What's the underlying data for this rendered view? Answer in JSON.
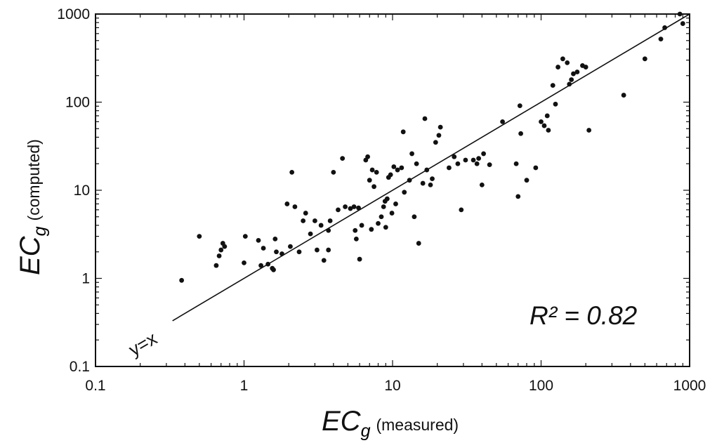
{
  "chart_data": {
    "type": "scatter",
    "x_scale": "log",
    "y_scale": "log",
    "xlim": [
      0.1,
      1000
    ],
    "ylim": [
      0.1,
      1000
    ],
    "x_ticks": [
      {
        "value": 0.1,
        "label": "0.1"
      },
      {
        "value": 1,
        "label": "1"
      },
      {
        "value": 10,
        "label": "10"
      },
      {
        "value": 100,
        "label": "100"
      },
      {
        "value": 1000,
        "label": "1000"
      }
    ],
    "y_ticks": [
      {
        "value": 0.1,
        "label": "0.1"
      },
      {
        "value": 1,
        "label": "1"
      },
      {
        "value": 10,
        "label": "10"
      },
      {
        "value": 100,
        "label": "100"
      },
      {
        "value": 1000,
        "label": "1000"
      }
    ],
    "xlabel": {
      "main": "EC",
      "sub": "g",
      "note": "(measured)"
    },
    "ylabel": {
      "main": "EC",
      "sub": "g",
      "note": "(computed)"
    },
    "grid": false,
    "annotations": {
      "r2": "R² = 0.82",
      "identity": "y=x"
    },
    "reference_line": {
      "from": [
        0.33,
        0.33
      ],
      "to": [
        1000,
        1000
      ]
    },
    "points": [
      [
        0.38,
        0.95
      ],
      [
        0.5,
        3.0
      ],
      [
        0.65,
        1.4
      ],
      [
        0.68,
        1.8
      ],
      [
        0.7,
        2.1
      ],
      [
        0.72,
        2.5
      ],
      [
        0.74,
        2.3
      ],
      [
        1.0,
        1.5
      ],
      [
        1.02,
        3.0
      ],
      [
        1.25,
        2.7
      ],
      [
        1.3,
        1.4
      ],
      [
        1.35,
        2.2
      ],
      [
        1.45,
        1.45
      ],
      [
        1.55,
        1.3
      ],
      [
        1.58,
        1.25
      ],
      [
        1.62,
        2.8
      ],
      [
        1.65,
        2.0
      ],
      [
        1.8,
        1.9
      ],
      [
        1.95,
        7.0
      ],
      [
        2.05,
        2.3
      ],
      [
        2.1,
        16.0
      ],
      [
        2.2,
        6.5
      ],
      [
        2.35,
        2.0
      ],
      [
        2.5,
        4.5
      ],
      [
        2.6,
        5.5
      ],
      [
        2.8,
        3.2
      ],
      [
        3.0,
        4.5
      ],
      [
        3.1,
        2.1
      ],
      [
        3.3,
        4.0
      ],
      [
        3.45,
        1.6
      ],
      [
        3.7,
        2.1
      ],
      [
        3.7,
        3.5
      ],
      [
        3.8,
        4.5
      ],
      [
        4.0,
        16.0
      ],
      [
        4.3,
        6.0
      ],
      [
        4.6,
        23.0
      ],
      [
        4.8,
        6.5
      ],
      [
        5.2,
        6.2
      ],
      [
        5.5,
        6.5
      ],
      [
        5.6,
        3.5
      ],
      [
        5.7,
        2.8
      ],
      [
        5.9,
        6.3
      ],
      [
        6.0,
        1.65
      ],
      [
        6.2,
        4.0
      ],
      [
        6.6,
        22.0
      ],
      [
        6.8,
        24.0
      ],
      [
        7.0,
        13.0
      ],
      [
        7.2,
        3.6
      ],
      [
        7.3,
        17.0
      ],
      [
        7.5,
        11.0
      ],
      [
        7.8,
        16.0
      ],
      [
        8.0,
        4.2
      ],
      [
        8.4,
        5.0
      ],
      [
        8.7,
        6.5
      ],
      [
        8.9,
        7.5
      ],
      [
        9.0,
        3.8
      ],
      [
        9.2,
        8.0
      ],
      [
        9.4,
        14.0
      ],
      [
        9.7,
        15.0
      ],
      [
        9.9,
        5.5
      ],
      [
        10.2,
        18.5
      ],
      [
        10.5,
        7.0
      ],
      [
        10.8,
        17.0
      ],
      [
        11.5,
        18.0
      ],
      [
        11.8,
        46.0
      ],
      [
        12.0,
        9.5
      ],
      [
        13.0,
        13.0
      ],
      [
        13.5,
        26.0
      ],
      [
        14.0,
        5.0
      ],
      [
        14.5,
        20.0
      ],
      [
        15.0,
        2.5
      ],
      [
        16.0,
        12.0
      ],
      [
        16.5,
        65.0
      ],
      [
        17.0,
        17.0
      ],
      [
        18.0,
        11.5
      ],
      [
        18.5,
        13.5
      ],
      [
        19.5,
        35.0
      ],
      [
        20.5,
        42.0
      ],
      [
        21.0,
        52.0
      ],
      [
        24.0,
        18.0
      ],
      [
        26.0,
        24.0
      ],
      [
        27.5,
        20.0
      ],
      [
        29.0,
        6.0
      ],
      [
        31.0,
        22.0
      ],
      [
        35.0,
        22.0
      ],
      [
        37.0,
        20.0
      ],
      [
        38.0,
        23.0
      ],
      [
        40.0,
        11.5
      ],
      [
        41.0,
        26.0
      ],
      [
        45.0,
        19.5
      ],
      [
        55.0,
        60.0
      ],
      [
        68.0,
        20.0
      ],
      [
        70.0,
        8.5
      ],
      [
        72.0,
        91.0
      ],
      [
        73.0,
        44.0
      ],
      [
        80.0,
        13.0
      ],
      [
        92.0,
        18.0
      ],
      [
        100.0,
        60.0
      ],
      [
        105.0,
        54.0
      ],
      [
        110.0,
        70.0
      ],
      [
        112.0,
        48.0
      ],
      [
        120.0,
        155.0
      ],
      [
        125.0,
        95.0
      ],
      [
        130.0,
        250.0
      ],
      [
        140.0,
        310.0
      ],
      [
        150.0,
        280.0
      ],
      [
        155.0,
        160.0
      ],
      [
        160.0,
        180.0
      ],
      [
        165.0,
        210.0
      ],
      [
        175.0,
        220.0
      ],
      [
        190.0,
        260.0
      ],
      [
        200.0,
        250.0
      ],
      [
        210.0,
        48.0
      ],
      [
        360.0,
        120.0
      ],
      [
        500.0,
        310.0
      ],
      [
        640.0,
        520.0
      ],
      [
        680.0,
        700.0
      ],
      [
        860.0,
        1000.0
      ],
      [
        900.0,
        780.0
      ]
    ]
  }
}
